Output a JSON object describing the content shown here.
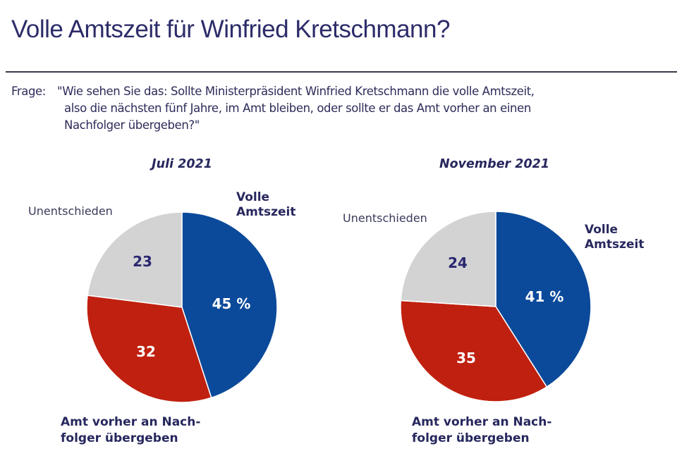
{
  "title": "Volle Amtszeit für Winfried Kretschmann?",
  "question": {
    "prefix": "Frage:",
    "lines": [
      "\"Wie sehen Sie das: Sollte Ministerpräsident Winfried Kretschmann die volle Amtszeit,",
      "also die nächsten fünf Jahre, im Amt bleiben, oder sollte er das Amt vorher an einen",
      "Nachfolger übergeben?\""
    ]
  },
  "colors": {
    "volle_amtszeit": "#0b4a9a",
    "nachfolger": "#c0200f",
    "unentschieden": "#d3d3d3",
    "value_dark": "#2a2870",
    "value_light": "#ffffff"
  },
  "chart_data": [
    {
      "type": "pie",
      "title": "Juli 2021",
      "unit": "%",
      "slices": [
        {
          "key": "volle_amtszeit",
          "label": "Volle Amtszeit",
          "label_lines": [
            "Volle",
            "Amtszeit"
          ],
          "value": 45,
          "value_label": "45 %"
        },
        {
          "key": "nachfolger",
          "label": "Amt vorher an Nachfolger übergeben",
          "label_lines": [
            "Amt vorher an Nach-",
            "folger übergeben"
          ],
          "value": 32,
          "value_label": "32"
        },
        {
          "key": "unentschieden",
          "label": "Unentschieden",
          "label_lines": [
            "Unentschieden"
          ],
          "value": 23,
          "value_label": "23"
        }
      ]
    },
    {
      "type": "pie",
      "title": "November 2021",
      "unit": "%",
      "slices": [
        {
          "key": "volle_amtszeit",
          "label": "Volle Amtszeit",
          "label_lines": [
            "Volle",
            "Amtszeit"
          ],
          "value": 41,
          "value_label": "41 %"
        },
        {
          "key": "nachfolger",
          "label": "Amt vorher an Nachfolger übergeben",
          "label_lines": [
            "Amt vorher an Nach-",
            "folger übergeben"
          ],
          "value": 35,
          "value_label": "35"
        },
        {
          "key": "unentschieden",
          "label": "Unentschieden",
          "label_lines": [
            "Unentschieden"
          ],
          "value": 24,
          "value_label": "24"
        }
      ]
    }
  ]
}
